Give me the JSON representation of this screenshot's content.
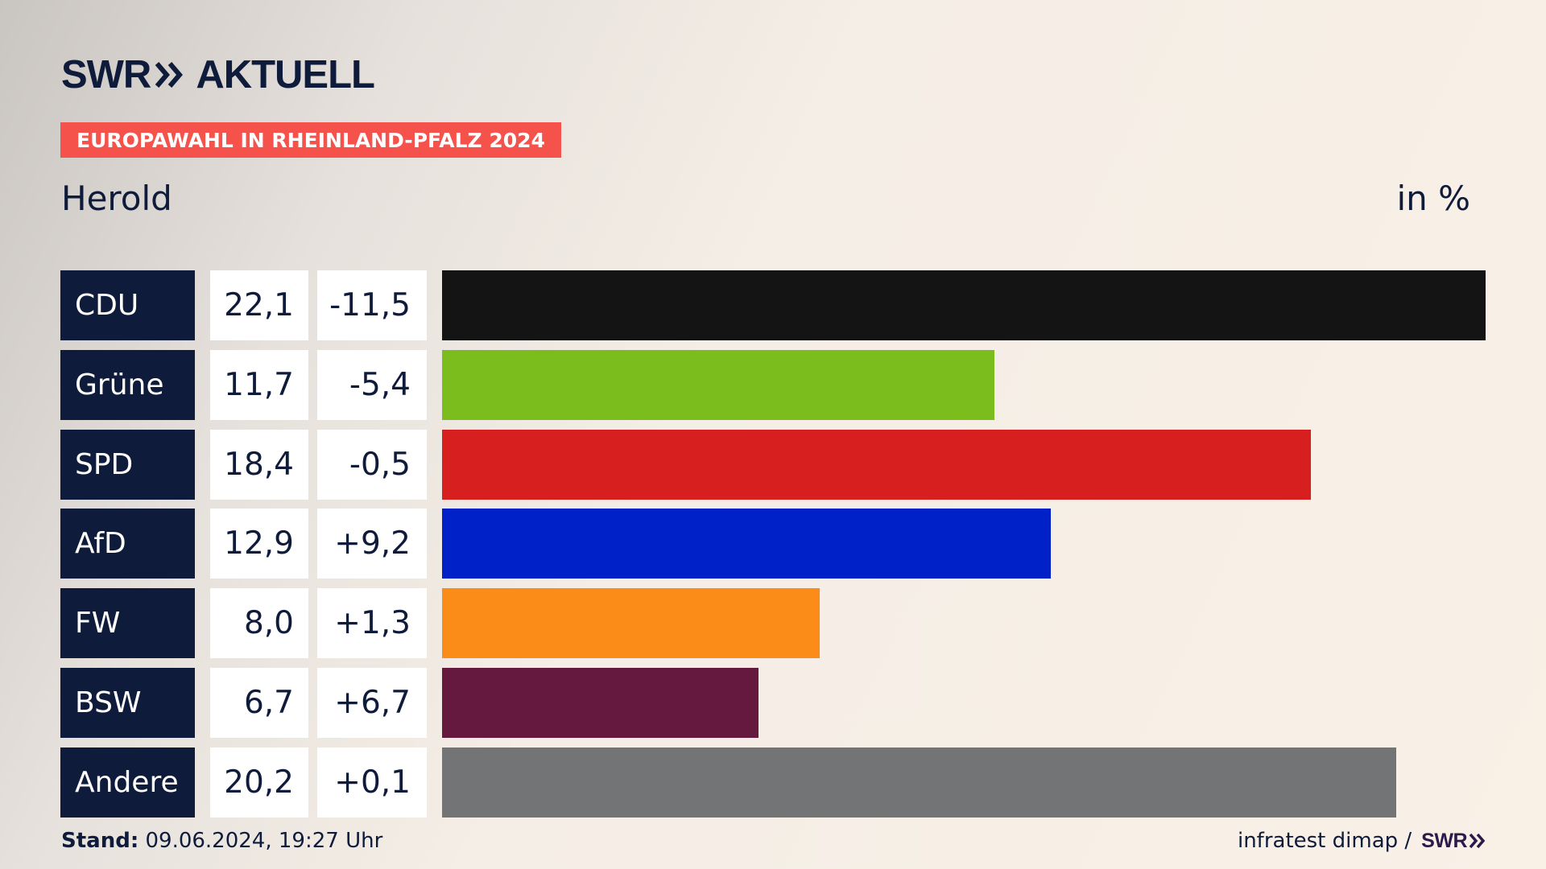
{
  "logo": {
    "brand": "SWR",
    "product": "AKTUELL",
    "icon": "double-chevron-icon"
  },
  "topic": "EUROPAWAHL IN RHEINLAND-PFALZ 2024",
  "region": "Herold",
  "unit_label": "in %",
  "chart_data": {
    "type": "bar",
    "orientation": "horizontal",
    "title": "EUROPAWAHL IN RHEINLAND-PFALZ 2024",
    "subtitle": "Herold",
    "unit": "in %",
    "xlim": [
      0,
      22.1
    ],
    "categories": [
      "CDU",
      "Grüne",
      "SPD",
      "AfD",
      "FW",
      "BSW",
      "Andere"
    ],
    "values": [
      22.1,
      11.7,
      18.4,
      12.9,
      8.0,
      6.7,
      20.2
    ],
    "value_labels": [
      "22,1",
      "11,7",
      "18,4",
      "12,9",
      "8,0",
      "6,7",
      "20,2"
    ],
    "diff_labels": [
      "-11,5",
      "-5,4",
      "-0,5",
      "+9,2",
      "+1,3",
      "+6,7",
      "+0,1"
    ],
    "colors": [
      "#141414",
      "#7abd1c",
      "#d71f1f",
      "#0021c7",
      "#fb8c18",
      "#66193f",
      "#737476"
    ]
  },
  "footer": {
    "stand_label": "Stand:",
    "stand_value": "09.06.2024, 19:27 Uhr",
    "source": "infratest dimap /",
    "source_brand": "SWR"
  }
}
